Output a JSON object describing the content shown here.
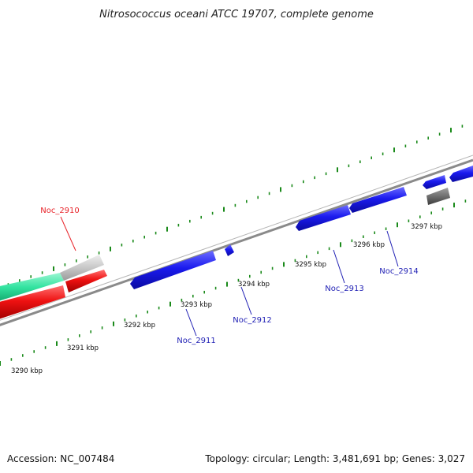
{
  "title": "Nitrosococcus oceani ATCC 19707, complete genome",
  "footer": {
    "accession": "Accession: NC_007484",
    "summary": "Topology: circular; Length: 3,481,691 bp; Genes: 3,027"
  },
  "kbp_labels": [
    "3290 kbp",
    "3291 kbp",
    "3292 kbp",
    "3293 kbp",
    "3294 kbp",
    "3295 kbp",
    "3296 kbp",
    "3297 kbp"
  ],
  "genes": [
    {
      "label": "Noc_2910",
      "color": "#e8242a"
    },
    {
      "label": "Noc_2911",
      "color": "#1f1fb4"
    },
    {
      "label": "Noc_2912",
      "color": "#1f1fb4"
    },
    {
      "label": "Noc_2913",
      "color": "#1f1fb4"
    },
    {
      "label": "Noc_2914",
      "color": "#1f1fb4"
    }
  ],
  "colors": {
    "cds_blue": "#1a1aee",
    "cds_red": "#ee1111",
    "cds_green": "#33e3a0",
    "cds_grey_light": "#c8c8c8",
    "cds_grey_dark": "#6f6f6f",
    "backbone": "#8a8a8a",
    "tick_green": "#1a8a1a"
  }
}
